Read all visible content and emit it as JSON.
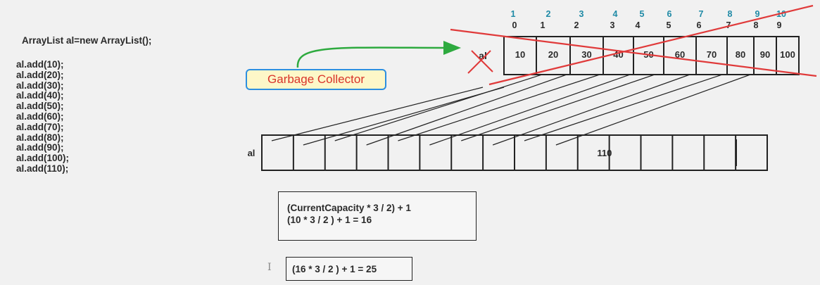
{
  "code": {
    "declaration": "ArrayList al=new ArrayList();",
    "calls": [
      "al.add(10);",
      "al.add(20);",
      "al.add(30);",
      "al.add(40);",
      "al.add(50);",
      "al.add(60);",
      "al.add(70);",
      "al.add(80);",
      "al.add(90);",
      "al.add(100);",
      "al.add(110);"
    ]
  },
  "old_array": {
    "label": "al",
    "indices": [
      "0",
      "1",
      "2",
      "3",
      "4",
      "5",
      "6",
      "7",
      "8",
      "9"
    ],
    "counts": [
      "1",
      "2",
      "3",
      "4",
      "5",
      "6",
      "7",
      "8",
      "9",
      "10"
    ],
    "values": [
      "10",
      "20",
      "30",
      "40",
      "50",
      "60",
      "70",
      "80",
      "90",
      "100"
    ]
  },
  "new_array": {
    "label": "al",
    "cell_count": 16,
    "new_value": "110",
    "new_value_index": 10
  },
  "callout": {
    "text": "Garbage Collector"
  },
  "formulas": {
    "line1": "(CurrentCapacity * 3 / 2) + 1",
    "line2": "(10 * 3 / 2 ) + 1 = 16",
    "line3": "(16 * 3 / 2 ) + 1 = 25"
  },
  "colors": {
    "counts": "#1f8aa6",
    "strike": "#e03a3a",
    "arrow": "#2eaa3f",
    "callout_border": "#2d8fe0",
    "callout_bg": "#fdf7c8",
    "callout_text": "#d9342b"
  }
}
